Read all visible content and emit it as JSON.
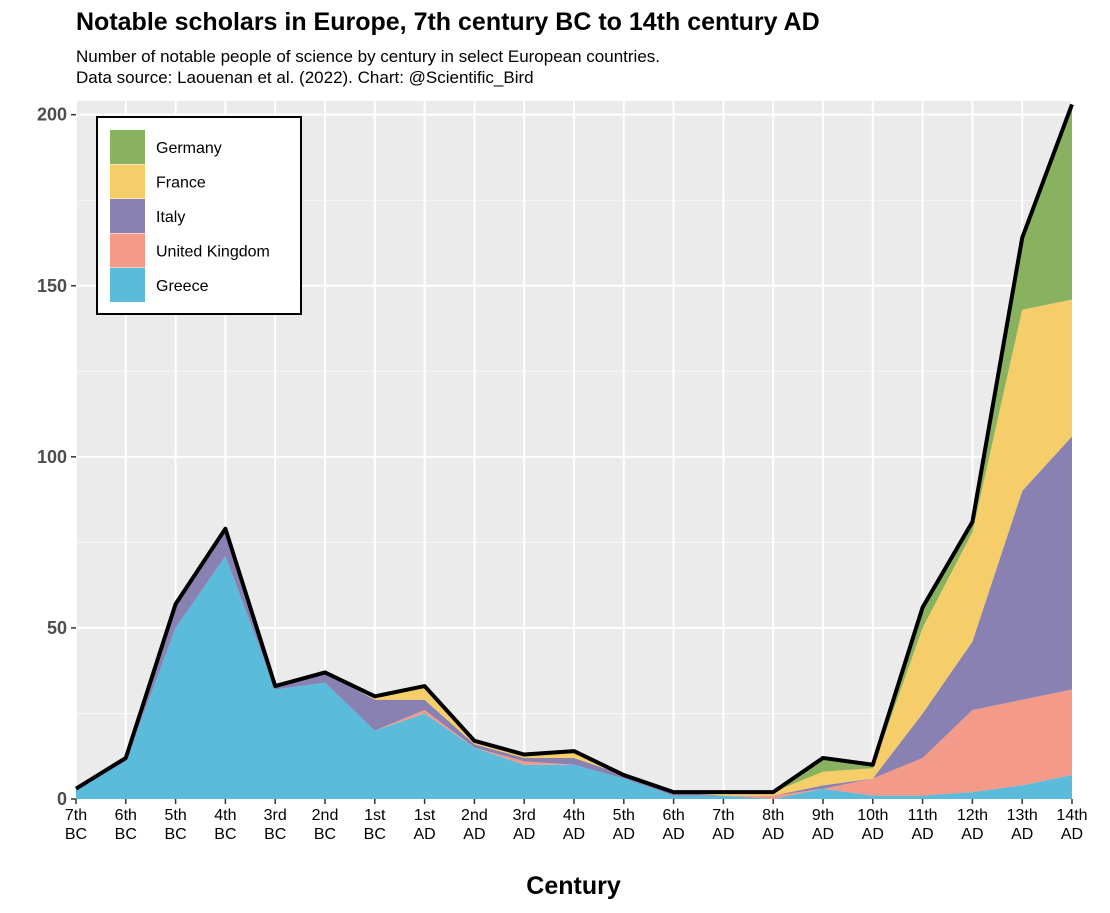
{
  "title": "Notable scholars in Europe, 7th century BC to 14th century AD",
  "subtitle_line1": "Number of notable people of science by century in select European countries.",
  "subtitle_line2": "Data source: Laouenan et al. (2022). Chart: @Scientific_Bird",
  "chart_data": {
    "type": "area",
    "stacked": true,
    "xlabel": "Century",
    "ylabel": "",
    "ylim": [
      0,
      200
    ],
    "yticks": [
      0,
      50,
      100,
      150,
      200
    ],
    "grid": true,
    "legend_position": "top-left",
    "categories": [
      [
        "7th",
        "BC"
      ],
      [
        "6th",
        "BC"
      ],
      [
        "5th",
        "BC"
      ],
      [
        "4th",
        "BC"
      ],
      [
        "3rd",
        "BC"
      ],
      [
        "2nd",
        "BC"
      ],
      [
        "1st",
        "BC"
      ],
      [
        "1st",
        "AD"
      ],
      [
        "2nd",
        "AD"
      ],
      [
        "3rd",
        "AD"
      ],
      [
        "4th",
        "AD"
      ],
      [
        "5th",
        "AD"
      ],
      [
        "6th",
        "AD"
      ],
      [
        "7th",
        "AD"
      ],
      [
        "8th",
        "AD"
      ],
      [
        "9th",
        "AD"
      ],
      [
        "10th",
        "AD"
      ],
      [
        "11th",
        "AD"
      ],
      [
        "12th",
        "AD"
      ],
      [
        "13th",
        "AD"
      ],
      [
        "14th",
        "AD"
      ]
    ],
    "series": [
      {
        "name": "Greece",
        "color": "#5bbbdb",
        "values": [
          3,
          11,
          50,
          71,
          32,
          34,
          20,
          25,
          15,
          10,
          10,
          6,
          1,
          1,
          0,
          3,
          1,
          1,
          2,
          4,
          7
        ]
      },
      {
        "name": "United Kingdom",
        "color": "#f49a88",
        "values": [
          0,
          0,
          0,
          0,
          0,
          0,
          0,
          1,
          0,
          1,
          0,
          0,
          0,
          0,
          1,
          0,
          5,
          11,
          24,
          25,
          25
        ]
      },
      {
        "name": "Italy",
        "color": "#8a81b3",
        "values": [
          0,
          1,
          7,
          8,
          1,
          3,
          9,
          3,
          1,
          1,
          2,
          1,
          1,
          0,
          0,
          1,
          0,
          13,
          20,
          61,
          74
        ]
      },
      {
        "name": "France",
        "color": "#f6ce69",
        "values": [
          0,
          0,
          0,
          0,
          0,
          0,
          1,
          4,
          1,
          1,
          2,
          0,
          0,
          1,
          1,
          4,
          3,
          25,
          32,
          53,
          40
        ]
      },
      {
        "name": "Germany",
        "color": "#89b260",
        "values": [
          0,
          0,
          0,
          0,
          0,
          0,
          0,
          0,
          0,
          0,
          0,
          0,
          0,
          0,
          0,
          4,
          1,
          6,
          3,
          21,
          57
        ]
      }
    ],
    "totals": [
      3,
      12,
      57,
      79,
      33,
      37,
      30,
      33,
      17,
      13,
      14,
      7,
      2,
      2,
      2,
      12,
      10,
      56,
      81,
      164,
      203
    ],
    "legend_order": [
      "Germany",
      "France",
      "Italy",
      "United Kingdom",
      "Greece"
    ],
    "colors": {
      "panel_bg": "#ebebeb",
      "grid": "#ffffff",
      "total_line": "#000000"
    }
  }
}
